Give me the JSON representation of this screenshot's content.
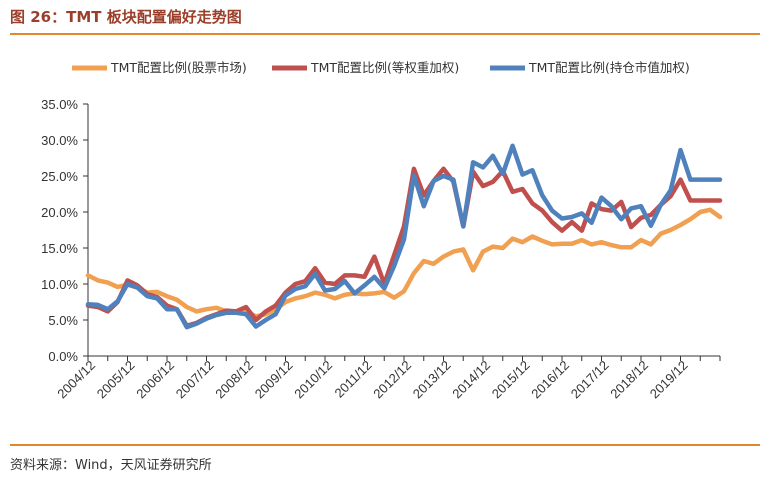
{
  "header": {
    "title": "图 26：TMT 板块配置偏好走势图"
  },
  "footer": {
    "source": "资料来源：Wind，天风证券研究所"
  },
  "chart_data": {
    "type": "line",
    "title": "",
    "xlabel": "",
    "ylabel": "",
    "ylim": [
      0,
      35
    ],
    "yticks": [
      "0.0%",
      "5.0%",
      "10.0%",
      "15.0%",
      "20.0%",
      "25.0%",
      "30.0%",
      "35.0%"
    ],
    "ytick_values": [
      0,
      5,
      10,
      15,
      20,
      25,
      30,
      35
    ],
    "xticks": [
      "2004/12",
      "2005/12",
      "2006/12",
      "2007/12",
      "2008/12",
      "2009/12",
      "2010/12",
      "2011/12",
      "2012/12",
      "2013/12",
      "2014/12",
      "2015/12",
      "2016/12",
      "2017/12",
      "2018/12",
      "2019/12"
    ],
    "x_start": 2004.75,
    "x_end": 2020.75,
    "colors": {
      "market": "#f0a050",
      "equal": "#c0504d",
      "holding": "#4f81bd"
    },
    "series": [
      {
        "name": "TMT配置比例(股票市场)",
        "key": "market",
        "x": [
          2004.75,
          2005.0,
          2005.25,
          2005.5,
          2005.75,
          2006.0,
          2006.25,
          2006.5,
          2006.75,
          2007.0,
          2007.25,
          2007.5,
          2007.75,
          2008.0,
          2008.25,
          2008.5,
          2008.75,
          2009.0,
          2009.25,
          2009.5,
          2009.75,
          2010.0,
          2010.25,
          2010.5,
          2010.75,
          2011.0,
          2011.25,
          2011.5,
          2011.75,
          2012.0,
          2012.25,
          2012.5,
          2012.75,
          2013.0,
          2013.25,
          2013.5,
          2013.75,
          2014.0,
          2014.25,
          2014.5,
          2014.75,
          2015.0,
          2015.25,
          2015.5,
          2015.75,
          2016.0,
          2016.25,
          2016.5,
          2016.75,
          2017.0,
          2017.25,
          2017.5,
          2017.75,
          2018.0,
          2018.25,
          2018.5,
          2018.75,
          2019.0,
          2019.25,
          2019.5,
          2019.75,
          2020.0,
          2020.25,
          2020.5,
          2020.75
        ],
        "values": [
          11.2,
          10.5,
          10.2,
          9.6,
          9.9,
          9.5,
          8.8,
          8.9,
          8.3,
          7.8,
          6.8,
          6.2,
          6.5,
          6.7,
          6.2,
          6.1,
          6.2,
          5.5,
          5.8,
          6.5,
          7.5,
          8.0,
          8.3,
          8.8,
          8.5,
          8.0,
          8.5,
          8.7,
          8.6,
          8.7,
          8.9,
          8.1,
          9.0,
          11.5,
          13.2,
          12.8,
          13.8,
          14.5,
          14.8,
          11.9,
          14.5,
          15.2,
          15.0,
          16.3,
          15.8,
          16.6,
          16.0,
          15.5,
          15.6,
          15.6,
          16.1,
          15.5,
          15.8,
          15.4,
          15.1,
          15.1,
          16.1,
          15.5,
          17.0,
          17.5,
          18.2,
          19.0,
          20.0,
          20.3,
          19.3
        ]
      },
      {
        "name": "TMT配置比例(等权重加权)",
        "key": "equal",
        "x": [
          2004.75,
          2005.0,
          2005.25,
          2005.5,
          2005.75,
          2006.0,
          2006.25,
          2006.5,
          2006.75,
          2007.0,
          2007.25,
          2007.5,
          2007.75,
          2008.0,
          2008.25,
          2008.5,
          2008.75,
          2009.0,
          2009.25,
          2009.5,
          2009.75,
          2010.0,
          2010.25,
          2010.5,
          2010.75,
          2011.0,
          2011.25,
          2011.5,
          2011.75,
          2012.0,
          2012.25,
          2012.5,
          2012.75,
          2013.0,
          2013.25,
          2013.5,
          2013.75,
          2014.0,
          2014.25,
          2014.5,
          2014.75,
          2015.0,
          2015.25,
          2015.5,
          2015.75,
          2016.0,
          2016.25,
          2016.5,
          2016.75,
          2017.0,
          2017.25,
          2017.5,
          2017.75,
          2018.0,
          2018.25,
          2018.5,
          2018.75,
          2019.0,
          2019.25,
          2019.5,
          2019.75,
          2020.0,
          2020.25,
          2020.5,
          2020.75
        ],
        "values": [
          7.0,
          6.8,
          6.2,
          7.5,
          10.5,
          9.8,
          8.6,
          8.2,
          7.0,
          6.5,
          4.2,
          4.6,
          5.3,
          5.8,
          6.3,
          6.2,
          6.8,
          5.0,
          6.2,
          7.0,
          8.8,
          10.0,
          10.4,
          12.2,
          10.2,
          10.0,
          11.2,
          11.2,
          11.0,
          13.8,
          10.0,
          14.0,
          18.0,
          26.0,
          22.3,
          24.3,
          26.0,
          24.2,
          18.0,
          25.6,
          23.6,
          24.2,
          25.7,
          22.8,
          23.2,
          21.2,
          20.2,
          18.6,
          17.4,
          18.6,
          17.4,
          21.2,
          20.4,
          20.2,
          21.4,
          17.9,
          19.2,
          19.6,
          21.0,
          22.2,
          24.5,
          21.6,
          21.6,
          21.6,
          21.6
        ]
      },
      {
        "name": "TMT配置比例(持仓市值加权)",
        "key": "holding",
        "x": [
          2004.75,
          2005.0,
          2005.25,
          2005.5,
          2005.75,
          2006.0,
          2006.25,
          2006.5,
          2006.75,
          2007.0,
          2007.25,
          2007.5,
          2007.75,
          2008.0,
          2008.25,
          2008.5,
          2008.75,
          2009.0,
          2009.25,
          2009.5,
          2009.75,
          2010.0,
          2010.25,
          2010.5,
          2010.75,
          2011.0,
          2011.25,
          2011.5,
          2011.75,
          2012.0,
          2012.25,
          2012.5,
          2012.75,
          2013.0,
          2013.25,
          2013.5,
          2013.75,
          2014.0,
          2014.25,
          2014.5,
          2014.75,
          2015.0,
          2015.25,
          2015.5,
          2015.75,
          2016.0,
          2016.25,
          2016.5,
          2016.75,
          2017.0,
          2017.25,
          2017.5,
          2017.75,
          2018.0,
          2018.25,
          2018.5,
          2018.75,
          2019.0,
          2019.25,
          2019.5,
          2019.75,
          2020.0,
          2020.25,
          2020.5,
          2020.75
        ],
        "values": [
          7.2,
          7.1,
          6.5,
          7.6,
          10.0,
          9.5,
          8.3,
          8.0,
          6.5,
          6.5,
          4.0,
          4.5,
          5.2,
          5.7,
          6.0,
          6.0,
          5.8,
          4.1,
          5.0,
          5.8,
          8.4,
          9.3,
          9.7,
          11.4,
          9.1,
          9.3,
          10.4,
          8.7,
          9.8,
          11.0,
          9.4,
          12.5,
          16.2,
          25.1,
          20.8,
          24.3,
          25.0,
          24.5,
          18.0,
          26.9,
          26.2,
          27.8,
          25.3,
          29.2,
          25.2,
          25.8,
          22.3,
          20.2,
          19.1,
          19.3,
          19.8,
          18.5,
          22.0,
          20.8,
          19.0,
          20.5,
          20.8,
          18.1,
          21.0,
          23.0,
          28.6,
          24.5,
          24.5,
          24.5,
          24.5
        ]
      }
    ]
  }
}
